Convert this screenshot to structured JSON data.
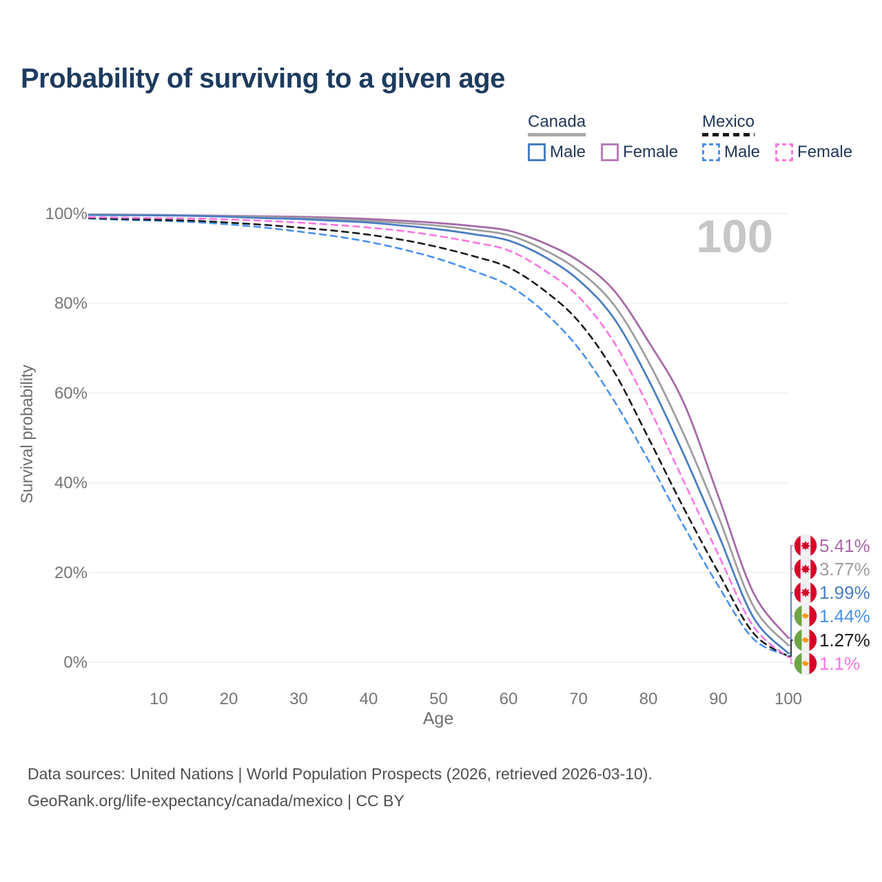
{
  "title": "Probability of surviving to a given age",
  "watermark_age": "100",
  "legend": {
    "canada": {
      "label": "Canada",
      "male": "Male",
      "female": "Female"
    },
    "mexico": {
      "label": "Mexico",
      "male": "Male",
      "female": "Female"
    }
  },
  "axes": {
    "x_label": "Age",
    "y_label": "Survival probability",
    "x_tick_labels": [
      "10",
      "20",
      "30",
      "40",
      "50",
      "60",
      "70",
      "80",
      "90",
      "100"
    ],
    "x_tick_values": [
      10,
      20,
      30,
      40,
      50,
      60,
      70,
      80,
      90,
      100
    ],
    "y_tick_labels": [
      "100%",
      "80%",
      "60%",
      "40%",
      "20%",
      "0%"
    ],
    "y_tick_values": [
      100,
      80,
      60,
      40,
      20,
      0
    ]
  },
  "colors": {
    "canada_male": "#4a7dc2",
    "canada_female": "#a66ba6",
    "canada_both": "#9e9e9e",
    "mexico_male": "#4a90ee",
    "mexico_female": "#fb76e1",
    "mexico_both": "#1a1a1a",
    "title_text": "#1d3b5e",
    "axis_text": "#757575",
    "grid": "#ececec",
    "watermark": "#c6c6c6",
    "canada_flag_red": "#d80027",
    "mexico_flag_green": "#6da544",
    "mexico_flag_red": "#d80027",
    "mexico_emblem_orange": "#ff9811"
  },
  "chart_data": {
    "type": "line",
    "title": "Probability of surviving to a given age",
    "xlabel": "Age",
    "ylabel": "Survival probability",
    "xlim": [
      0,
      100
    ],
    "ylim": [
      0,
      100
    ],
    "grid": "horizontal",
    "legend_position": "top-right",
    "x": [
      0,
      5,
      10,
      15,
      20,
      25,
      30,
      35,
      40,
      45,
      50,
      55,
      60,
      65,
      70,
      75,
      80,
      85,
      90,
      95,
      100
    ],
    "series": [
      {
        "name": "Canada Female",
        "slug": "canada-female",
        "country": "Canada",
        "sex": "Female",
        "color": "#a66ba6",
        "style": "solid",
        "flag": "canada",
        "end_label": "5.41%",
        "values": [
          99.8,
          99.75,
          99.7,
          99.6,
          99.5,
          99.4,
          99.3,
          99.1,
          98.8,
          98.4,
          97.9,
          97.2,
          96.2,
          93.5,
          89.5,
          83.0,
          71.5,
          58.0,
          37.0,
          15.5,
          5.41
        ]
      },
      {
        "name": "Canada Both sexes",
        "slug": "canada-both",
        "country": "Canada",
        "sex": "Both",
        "color": "#9e9e9e",
        "style": "solid",
        "flag": "canada",
        "end_label": "3.77%",
        "values": [
          99.8,
          99.7,
          99.65,
          99.55,
          99.4,
          99.25,
          99.05,
          98.8,
          98.4,
          97.9,
          97.3,
          96.4,
          95.2,
          92.0,
          87.3,
          79.8,
          67.0,
          51.0,
          32.5,
          12.5,
          3.77
        ]
      },
      {
        "name": "Canada Male",
        "slug": "canada-male",
        "country": "Canada",
        "sex": "Male",
        "color": "#4a7dc2",
        "style": "solid",
        "flag": "canada",
        "end_label": "1.99%",
        "values": [
          99.7,
          99.65,
          99.6,
          99.5,
          99.3,
          99.0,
          98.8,
          98.4,
          98.0,
          97.3,
          96.5,
          95.4,
          94.0,
          90.5,
          85.2,
          76.8,
          63.0,
          46.5,
          28.5,
          10.0,
          1.99
        ]
      },
      {
        "name": "Mexico Male",
        "slug": "mexico-male",
        "country": "Mexico",
        "sex": "Male",
        "color": "#4a90ee",
        "style": "dashed",
        "flag": "mexico",
        "end_label": "1.44%",
        "values": [
          98.9,
          98.6,
          98.4,
          98.1,
          97.6,
          96.9,
          96.0,
          95.0,
          93.7,
          92.0,
          89.9,
          87.2,
          84.0,
          78.2,
          70.0,
          58.5,
          45.0,
          30.5,
          17.0,
          5.2,
          1.44
        ]
      },
      {
        "name": "Mexico Both sexes",
        "slug": "mexico-both",
        "country": "Mexico",
        "sex": "Both",
        "color": "#1a1a1a",
        "style": "dashed",
        "flag": "mexico",
        "end_label": "1.27%",
        "values": [
          99.0,
          98.8,
          98.6,
          98.4,
          98.0,
          97.5,
          96.9,
          96.2,
          95.3,
          94.1,
          92.5,
          90.5,
          88.0,
          83.0,
          76.0,
          65.0,
          50.0,
          34.5,
          20.0,
          6.5,
          1.27
        ]
      },
      {
        "name": "Mexico Female",
        "slug": "mexico-female",
        "country": "Mexico",
        "sex": "Female",
        "color": "#fb76e1",
        "style": "dashed",
        "flag": "mexico",
        "end_label": "1.1%",
        "values": [
          99.2,
          99.1,
          99.0,
          98.9,
          98.7,
          98.4,
          98.0,
          97.5,
          96.9,
          96.1,
          95.0,
          93.6,
          91.8,
          87.5,
          81.5,
          71.5,
          57.0,
          40.5,
          24.0,
          8.0,
          1.1
        ]
      }
    ]
  },
  "footer": {
    "line1": "Data sources: United Nations | World Population Prospects (2026, retrieved 2026-03-10).",
    "line2": "GeoRank.org/life-expectancy/canada/mexico | CC BY"
  }
}
